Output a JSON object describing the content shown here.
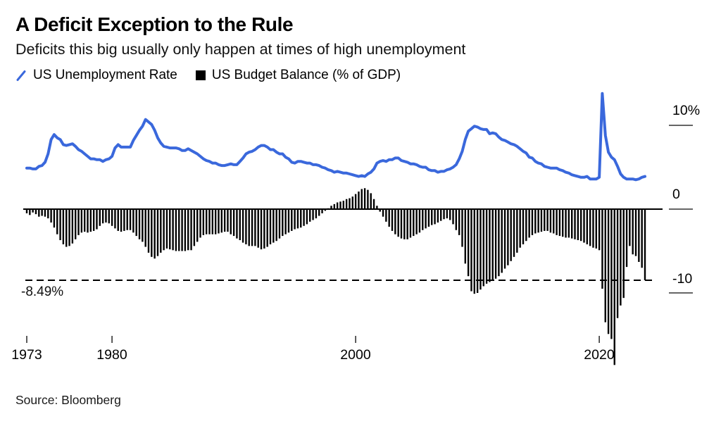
{
  "header": {
    "title": "A Deficit Exception to the Rule",
    "subtitle": "Deficits this big usually only happen at times of high unemployment"
  },
  "legend": {
    "items": [
      {
        "label": "US Unemployment Rate",
        "marker": "line-slash",
        "color": "#3A68DC"
      },
      {
        "label": "US Budget Balance (% of GDP)",
        "marker": "square",
        "color": "#000000"
      }
    ]
  },
  "annotation": {
    "label": "-8.49%"
  },
  "footer": {
    "source": "Source: Bloomberg"
  },
  "chart_data": {
    "type": "line+bar",
    "title": "A Deficit Exception to the Rule",
    "subtitle": "Deficits this big usually only happen at times of high unemployment",
    "legend_position": "top",
    "grid": false,
    "x": {
      "start_year": 1973,
      "step_years": 0.25,
      "end_year": 2023.75,
      "frequency": "quarterly"
    },
    "x_axis": {
      "ticks": [
        {
          "year": 1973,
          "label": "1973"
        },
        {
          "year": 1980,
          "label": "1980"
        },
        {
          "year": 2000,
          "label": "2000"
        },
        {
          "year": 2020,
          "label": "2020"
        }
      ]
    },
    "y_axis": {
      "unit": "percent",
      "range": [
        -19.6,
        14.2
      ],
      "ticks": [
        {
          "value": 10,
          "label": "10%"
        },
        {
          "value": 0,
          "label": "0"
        },
        {
          "value": -10,
          "label": "-10"
        }
      ]
    },
    "reference_line": {
      "value": -8.49,
      "label": "-8.49%",
      "style": "dashed",
      "color": "#000000"
    },
    "series": [
      {
        "name": "US Unemployment Rate",
        "type": "line",
        "color": "#3A68DC",
        "values": [
          4.9,
          4.9,
          4.8,
          4.8,
          5.1,
          5.2,
          5.6,
          6.6,
          8.3,
          8.9,
          8.5,
          8.3,
          7.7,
          7.6,
          7.7,
          7.8,
          7.5,
          7.1,
          6.9,
          6.6,
          6.3,
          6.0,
          6.0,
          5.9,
          5.9,
          5.7,
          5.9,
          6.0,
          6.3,
          7.3,
          7.7,
          7.4,
          7.4,
          7.4,
          7.4,
          8.2,
          8.8,
          9.4,
          9.9,
          10.7,
          10.4,
          10.1,
          9.4,
          8.5,
          7.9,
          7.5,
          7.4,
          7.3,
          7.3,
          7.3,
          7.2,
          7.0,
          7.0,
          7.2,
          7.0,
          6.8,
          6.6,
          6.3,
          6.0,
          5.8,
          5.7,
          5.5,
          5.5,
          5.3,
          5.2,
          5.2,
          5.3,
          5.4,
          5.3,
          5.3,
          5.7,
          6.1,
          6.6,
          6.8,
          6.9,
          7.1,
          7.4,
          7.6,
          7.6,
          7.4,
          7.1,
          7.1,
          6.8,
          6.6,
          6.6,
          6.2,
          6.0,
          5.6,
          5.5,
          5.7,
          5.7,
          5.6,
          5.5,
          5.5,
          5.3,
          5.3,
          5.2,
          5.0,
          4.9,
          4.7,
          4.6,
          4.4,
          4.5,
          4.4,
          4.3,
          4.3,
          4.2,
          4.1,
          4.0,
          3.9,
          4.0,
          3.9,
          4.2,
          4.4,
          4.8,
          5.5,
          5.7,
          5.8,
          5.7,
          5.9,
          5.9,
          6.1,
          6.1,
          5.8,
          5.7,
          5.6,
          5.4,
          5.4,
          5.3,
          5.1,
          5.0,
          5.0,
          4.7,
          4.6,
          4.6,
          4.4,
          4.5,
          4.5,
          4.7,
          4.8,
          5.0,
          5.3,
          6.0,
          6.9,
          8.3,
          9.3,
          9.6,
          9.9,
          9.8,
          9.6,
          9.5,
          9.5,
          9.0,
          9.1,
          9.0,
          8.6,
          8.3,
          8.2,
          8.0,
          7.8,
          7.7,
          7.5,
          7.2,
          6.9,
          6.7,
          6.2,
          6.1,
          5.7,
          5.5,
          5.4,
          5.1,
          5.0,
          4.9,
          4.9,
          4.9,
          4.7,
          4.6,
          4.4,
          4.3,
          4.1,
          4.0,
          3.9,
          3.8,
          3.8,
          3.9,
          3.6,
          3.6,
          3.6,
          3.8,
          13.8,
          8.8,
          6.8,
          6.2,
          5.9,
          5.1,
          4.2,
          3.8,
          3.6,
          3.6,
          3.6,
          3.5,
          3.6,
          3.8,
          3.9
        ]
      },
      {
        "name": "US Budget Balance (% of GDP)",
        "type": "bar",
        "color": "#000000",
        "values": [
          -0.5,
          -0.7,
          -0.4,
          -0.6,
          -0.9,
          -0.8,
          -0.9,
          -1.1,
          -1.6,
          -2.2,
          -3.0,
          -3.7,
          -4.2,
          -4.5,
          -4.4,
          -4.1,
          -3.6,
          -3.1,
          -2.8,
          -2.7,
          -2.8,
          -2.7,
          -2.6,
          -2.4,
          -2.0,
          -1.7,
          -1.6,
          -1.7,
          -2.0,
          -2.3,
          -2.6,
          -2.7,
          -2.6,
          -2.5,
          -2.5,
          -2.8,
          -3.2,
          -3.6,
          -3.9,
          -4.5,
          -5.2,
          -5.7,
          -5.9,
          -5.6,
          -5.2,
          -4.9,
          -4.7,
          -4.8,
          -4.9,
          -5.0,
          -5.0,
          -5.0,
          -5.0,
          -4.9,
          -4.9,
          -4.4,
          -3.9,
          -3.4,
          -3.1,
          -3.0,
          -3.0,
          -3.0,
          -3.0,
          -2.9,
          -2.8,
          -2.7,
          -2.7,
          -3.0,
          -3.2,
          -3.5,
          -3.7,
          -4.0,
          -4.2,
          -4.4,
          -4.4,
          -4.4,
          -4.6,
          -4.8,
          -4.7,
          -4.5,
          -4.2,
          -4.0,
          -3.8,
          -3.5,
          -3.2,
          -3.0,
          -2.8,
          -2.6,
          -2.4,
          -2.3,
          -2.2,
          -2.0,
          -1.8,
          -1.5,
          -1.3,
          -1.1,
          -0.8,
          -0.5,
          -0.2,
          0.1,
          0.4,
          0.6,
          0.8,
          0.9,
          1.0,
          1.2,
          1.3,
          1.5,
          1.8,
          2.1,
          2.4,
          2.5,
          2.3,
          1.9,
          1.2,
          0.4,
          -0.3,
          -0.9,
          -1.5,
          -2.1,
          -2.6,
          -3.0,
          -3.3,
          -3.5,
          -3.6,
          -3.6,
          -3.4,
          -3.2,
          -3.0,
          -2.8,
          -2.5,
          -2.3,
          -2.1,
          -1.9,
          -1.8,
          -1.6,
          -1.4,
          -1.2,
          -1.1,
          -1.3,
          -1.8,
          -2.5,
          -3.1,
          -4.5,
          -6.5,
          -8.0,
          -9.8,
          -10.1,
          -10.0,
          -9.6,
          -9.2,
          -8.9,
          -8.7,
          -8.5,
          -8.3,
          -8.0,
          -7.6,
          -7.1,
          -6.7,
          -6.2,
          -5.7,
          -5.2,
          -4.6,
          -4.2,
          -3.8,
          -3.4,
          -3.1,
          -2.9,
          -2.8,
          -2.7,
          -2.6,
          -2.6,
          -2.8,
          -2.9,
          -3.1,
          -3.2,
          -3.3,
          -3.4,
          -3.4,
          -3.5,
          -3.6,
          -3.7,
          -3.8,
          -4.0,
          -4.2,
          -4.4,
          -4.6,
          -4.7,
          -4.9,
          -9.5,
          -13.5,
          -14.9,
          -15.5,
          -18.6,
          -13.0,
          -11.5,
          -10.6,
          -6.9,
          -4.4,
          -5.4,
          -5.6,
          -6.3,
          -7.0,
          -8.49
        ]
      }
    ]
  }
}
